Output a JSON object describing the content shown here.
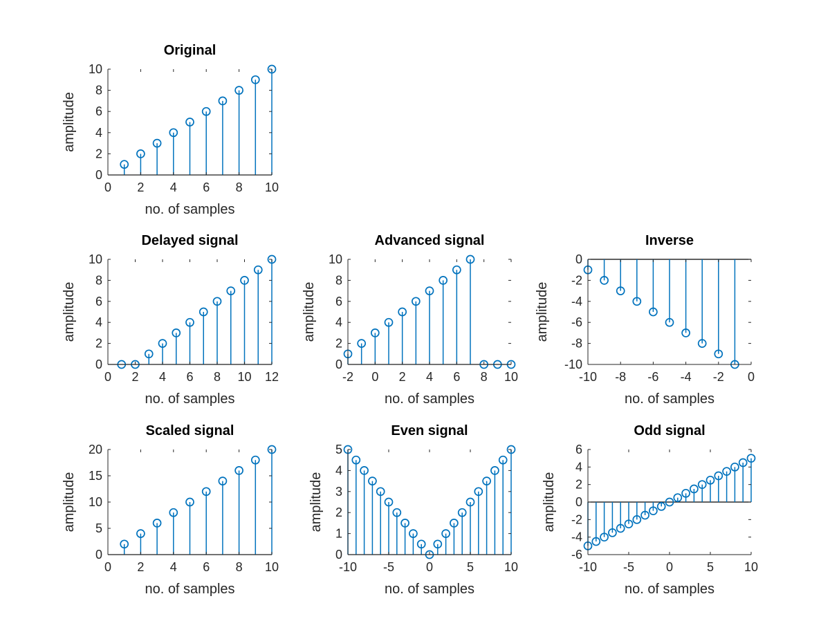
{
  "colors": {
    "stem": "#0072bd",
    "axis": "#262626",
    "baseline": "#000000",
    "background": "#ffffff"
  },
  "chart_data": [
    {
      "type": "stem",
      "title": "Original",
      "xlabel": "no. of samples",
      "ylabel": "amplitude",
      "xlim": [
        0,
        10
      ],
      "ylim": [
        0,
        10
      ],
      "xticks": [
        "0",
        "2",
        "4",
        "6",
        "8",
        "10"
      ],
      "yticks": [
        "0",
        "2",
        "4",
        "6",
        "8",
        "10"
      ],
      "x": [
        1,
        2,
        3,
        4,
        5,
        6,
        7,
        8,
        9,
        10
      ],
      "y": [
        1,
        2,
        3,
        4,
        5,
        6,
        7,
        8,
        9,
        10
      ]
    },
    {
      "type": "stem",
      "title": "Delayed signal",
      "xlabel": "no. of samples",
      "ylabel": "amplitude",
      "xlim": [
        0,
        12
      ],
      "ylim": [
        0,
        10
      ],
      "xticks": [
        "0",
        "2",
        "4",
        "6",
        "8",
        "10",
        "12"
      ],
      "yticks": [
        "0",
        "2",
        "4",
        "6",
        "8",
        "10"
      ],
      "x": [
        1,
        2,
        3,
        4,
        5,
        6,
        7,
        8,
        9,
        10,
        11,
        12
      ],
      "y": [
        0,
        0,
        1,
        2,
        3,
        4,
        5,
        6,
        7,
        8,
        9,
        10
      ]
    },
    {
      "type": "stem",
      "title": "Advanced signal",
      "xlabel": "no. of samples",
      "ylabel": "amplitude",
      "xlim": [
        -2,
        10
      ],
      "ylim": [
        0,
        10
      ],
      "xticks": [
        "-2",
        "0",
        "2",
        "4",
        "6",
        "8",
        "10"
      ],
      "yticks": [
        "0",
        "2",
        "4",
        "6",
        "8",
        "10"
      ],
      "x": [
        -2,
        -1,
        0,
        1,
        2,
        3,
        4,
        5,
        6,
        7,
        8,
        9,
        10
      ],
      "y": [
        1,
        2,
        3,
        4,
        5,
        6,
        7,
        8,
        9,
        10,
        0,
        0,
        0
      ]
    },
    {
      "type": "stem",
      "title": "Inverse",
      "xlabel": "no. of samples",
      "ylabel": "amplitude",
      "xlim": [
        -10,
        0
      ],
      "ylim": [
        -10,
        0
      ],
      "xticks": [
        "-10",
        "-8",
        "-6",
        "-4",
        "-2",
        "0"
      ],
      "yticks": [
        "-10",
        "-8",
        "-6",
        "-4",
        "-2",
        "0"
      ],
      "x": [
        -10,
        -9,
        -8,
        -7,
        -6,
        -5,
        -4,
        -3,
        -2,
        -1
      ],
      "y": [
        -1,
        -2,
        -3,
        -4,
        -5,
        -6,
        -7,
        -8,
        -9,
        -10
      ]
    },
    {
      "type": "stem",
      "title": "Scaled signal",
      "xlabel": "no. of samples",
      "ylabel": "amplitude",
      "xlim": [
        0,
        10
      ],
      "ylim": [
        0,
        20
      ],
      "xticks": [
        "0",
        "2",
        "4",
        "6",
        "8",
        "10"
      ],
      "yticks": [
        "0",
        "5",
        "10",
        "15",
        "20"
      ],
      "x": [
        1,
        2,
        3,
        4,
        5,
        6,
        7,
        8,
        9,
        10
      ],
      "y": [
        2,
        4,
        6,
        8,
        10,
        12,
        14,
        16,
        18,
        20
      ]
    },
    {
      "type": "stem",
      "title": "Even signal",
      "xlabel": "no. of samples",
      "ylabel": "amplitude",
      "xlim": [
        -10,
        10
      ],
      "ylim": [
        0,
        5
      ],
      "xticks": [
        "-10",
        "-5",
        "0",
        "5",
        "10"
      ],
      "yticks": [
        "0",
        "1",
        "2",
        "3",
        "4",
        "5"
      ],
      "x": [
        -10,
        -9,
        -8,
        -7,
        -6,
        -5,
        -4,
        -3,
        -2,
        -1,
        0,
        1,
        2,
        3,
        4,
        5,
        6,
        7,
        8,
        9,
        10
      ],
      "y": [
        5,
        4.5,
        4,
        3.5,
        3,
        2.5,
        2,
        1.5,
        1,
        0.5,
        0,
        0.5,
        1,
        1.5,
        2,
        2.5,
        3,
        3.5,
        4,
        4.5,
        5
      ]
    },
    {
      "type": "stem",
      "title": "Odd signal",
      "xlabel": "no. of samples",
      "ylabel": "amplitude",
      "xlim": [
        -10,
        10
      ],
      "ylim": [
        -6,
        6
      ],
      "xticks": [
        "-10",
        "-5",
        "0",
        "5",
        "10"
      ],
      "yticks": [
        "-6",
        "-4",
        "-2",
        "0",
        "2",
        "4",
        "6"
      ],
      "x": [
        -10,
        -9,
        -8,
        -7,
        -6,
        -5,
        -4,
        -3,
        -2,
        -1,
        0,
        1,
        2,
        3,
        4,
        5,
        6,
        7,
        8,
        9,
        10
      ],
      "y": [
        -5,
        -4.5,
        -4,
        -3.5,
        -3,
        -2.5,
        -2,
        -1.5,
        -1,
        -0.5,
        0,
        0.5,
        1,
        1.5,
        2,
        2.5,
        3,
        3.5,
        4,
        4.5,
        5
      ]
    }
  ]
}
